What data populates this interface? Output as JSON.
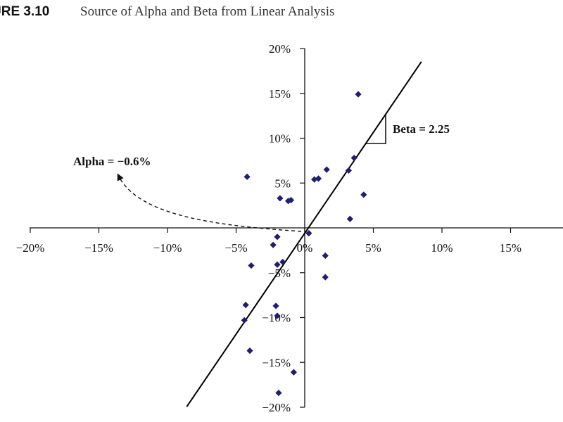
{
  "figure": {
    "number": "URE 3.10",
    "title": "Source of Alpha and Beta from Linear Analysis"
  },
  "chart_data": {
    "type": "scatter",
    "title": "Source of Alpha and Beta from Linear Analysis",
    "xlabel": "",
    "ylabel": "",
    "xlim": [
      -20,
      18
    ],
    "ylim": [
      -20,
      20
    ],
    "x_ticks": [
      "−20%",
      "−15%",
      "−10%",
      "−5%",
      "0%",
      "5%",
      "10%",
      "15%"
    ],
    "x_tick_values": [
      -20,
      -15,
      -10,
      -5,
      0,
      5,
      10,
      15
    ],
    "y_ticks": [
      "20%",
      "15%",
      "10%",
      "5%",
      "−5%",
      "−10%",
      "−15%",
      "−20%"
    ],
    "y_tick_values": [
      20,
      15,
      10,
      5,
      -5,
      -10,
      -15,
      -20
    ],
    "grid": false,
    "marker_color": "#1f1f6e",
    "line_color": "#000000",
    "points": [
      {
        "x": 3.9,
        "y": 14.9
      },
      {
        "x": 3.6,
        "y": 7.8
      },
      {
        "x": 3.2,
        "y": 6.4
      },
      {
        "x": 1.6,
        "y": 6.5
      },
      {
        "x": 1.0,
        "y": 5.5
      },
      {
        "x": 0.7,
        "y": 5.4
      },
      {
        "x": 4.3,
        "y": 3.7
      },
      {
        "x": -4.2,
        "y": 5.7
      },
      {
        "x": -1.8,
        "y": 3.3
      },
      {
        "x": -1.2,
        "y": 3.0
      },
      {
        "x": -1.0,
        "y": 3.1
      },
      {
        "x": 3.3,
        "y": 1.0
      },
      {
        "x": 0.3,
        "y": -0.6
      },
      {
        "x": -2.0,
        "y": -1.0
      },
      {
        "x": -2.3,
        "y": -1.9
      },
      {
        "x": 1.5,
        "y": -3.1
      },
      {
        "x": -1.6,
        "y": -3.8
      },
      {
        "x": -2.0,
        "y": -4.1
      },
      {
        "x": -3.9,
        "y": -4.2
      },
      {
        "x": 1.5,
        "y": -5.5
      },
      {
        "x": -4.3,
        "y": -8.6
      },
      {
        "x": -2.1,
        "y": -8.7
      },
      {
        "x": -2.0,
        "y": -9.8
      },
      {
        "x": -4.4,
        "y": -10.3
      },
      {
        "x": -4.0,
        "y": -13.7
      },
      {
        "x": -0.8,
        "y": -16.1
      },
      {
        "x": -1.9,
        "y": -18.4
      }
    ],
    "regression": {
      "alpha": -0.6,
      "beta": 2.25,
      "x_start": -8.6,
      "x_end": 8.5
    },
    "annotations": {
      "beta_label": "Beta = 2.25",
      "alpha_label": "Alpha = −0.6%"
    }
  }
}
